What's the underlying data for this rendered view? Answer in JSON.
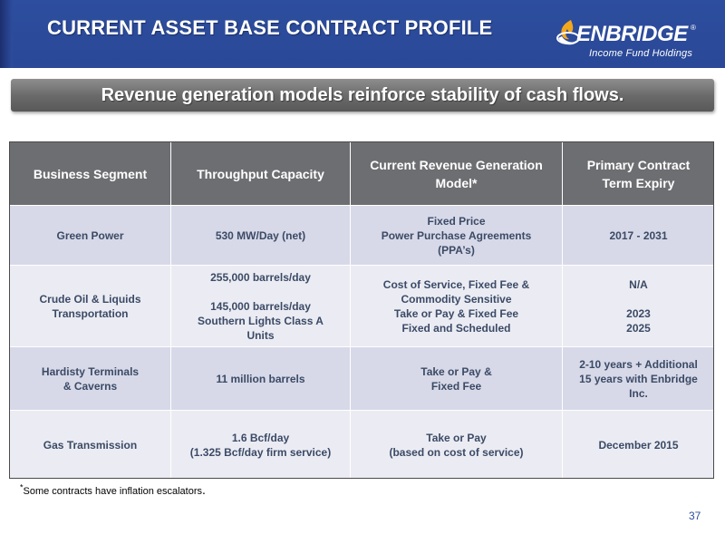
{
  "header": {
    "title": "CURRENT ASSET BASE CONTRACT PROFILE",
    "logo_name": "ENBRIDGE",
    "logo_reg": "®",
    "logo_sub": "Income Fund Holdings",
    "colors": {
      "header_bg": "#2d4d9e",
      "table_header_bg": "#6d6e71",
      "row_dark": "#d7d9e8",
      "row_light": "#ebecf3"
    }
  },
  "banner": {
    "text": "Revenue generation models reinforce stability of cash flows."
  },
  "table": {
    "headers": {
      "segment": "Business Segment",
      "capacity": "Throughput Capacity",
      "model_line1": "Current Revenue Generation",
      "model_line2": "Model*",
      "term_line1": "Primary Contract",
      "term_line2": "Term Expiry"
    },
    "rows": [
      {
        "segment": [
          "Green Power"
        ],
        "capacity": [
          "530 MW/Day (net)"
        ],
        "model": [
          "Fixed Price",
          "Power Purchase Agreements",
          "(PPA’s)"
        ],
        "term": [
          "2017 - 2031"
        ]
      },
      {
        "segment": [
          "Crude Oil & Liquids",
          "Transportation"
        ],
        "capacity": [
          "255,000 barrels/day",
          "",
          "145,000 barrels/day",
          "Southern Lights Class A",
          "Units"
        ],
        "model": [
          "Cost of Service, Fixed Fee &",
          "Commodity Sensitive",
          "Take or Pay & Fixed Fee",
          "Fixed and Scheduled"
        ],
        "term": [
          "N/A",
          "",
          "2023",
          "2025"
        ]
      },
      {
        "segment": [
          "Hardisty Terminals",
          "& Caverns"
        ],
        "capacity": [
          "11 million barrels"
        ],
        "model": [
          "Take or Pay &",
          "Fixed Fee"
        ],
        "term": [
          "2-10 years + Additional",
          "15 years with Enbridge",
          "Inc."
        ]
      },
      {
        "segment": [
          "Gas Transmission"
        ],
        "capacity": [
          "1.6 Bcf/day",
          "(1.325 Bcf/day firm service)"
        ],
        "model": [
          "Take or Pay",
          "(based on cost of service)"
        ],
        "term": [
          "December 2015"
        ]
      }
    ]
  },
  "footnote": {
    "mark": "*",
    "text": "Some contracts have inflation escalators",
    "end": "."
  },
  "page_number": "37"
}
